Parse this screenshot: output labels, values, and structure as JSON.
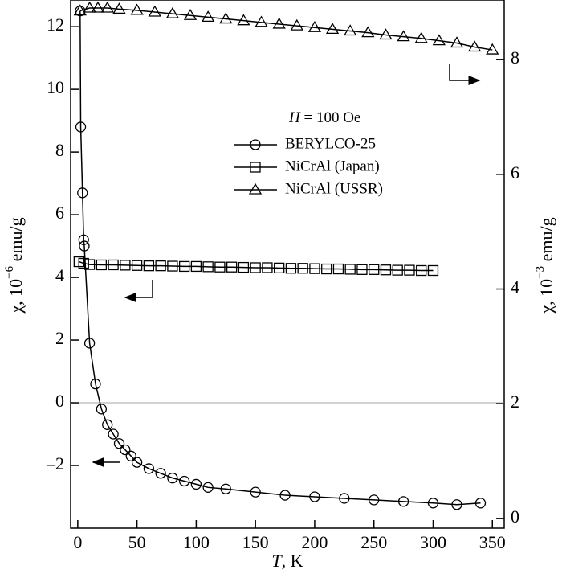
{
  "chart_data": {
    "type": "scatter",
    "xlabel_parts": [
      "T",
      ", K"
    ],
    "ylabel_parts": [
      "χ, 10",
      "−6",
      " emu/g"
    ],
    "y2label_parts": [
      "χ, 10",
      "−3",
      " emu/g"
    ],
    "annotation_parts": [
      "H",
      " = 100 Oe"
    ],
    "xlim": [
      -6,
      360
    ],
    "xticks": [
      0,
      50,
      100,
      150,
      200,
      250,
      300,
      350
    ],
    "ylim": [
      -4,
      12.85
    ],
    "yticks": [
      {
        "value": -2,
        "label": "–2"
      },
      0,
      2,
      4,
      6,
      8,
      10,
      12
    ],
    "y2lim": [
      -0.17,
      9.04
    ],
    "y2ticks": [
      0,
      2,
      4,
      6,
      8
    ],
    "reference_line": 0,
    "series": [
      {
        "name": "BERYLCO-25",
        "color": "#000",
        "marker": "circle",
        "axis": "y",
        "x": [
          2,
          2.5,
          4,
          5,
          5.5,
          10,
          15,
          20,
          25,
          30,
          35,
          40,
          45,
          50,
          60,
          70,
          80,
          90,
          100,
          110,
          125,
          150,
          175,
          200,
          225,
          250,
          275,
          300,
          320,
          340
        ],
        "values": [
          12.5,
          8.8,
          6.7,
          5.2,
          5.0,
          1.9,
          0.6,
          -0.2,
          -0.7,
          -1.0,
          -1.3,
          -1.5,
          -1.7,
          -1.9,
          -2.1,
          -2.25,
          -2.4,
          -2.5,
          -2.6,
          -2.7,
          -2.75,
          -2.85,
          -2.95,
          -3.0,
          -3.05,
          -3.1,
          -3.15,
          -3.2,
          -3.25,
          -3.2
        ]
      },
      {
        "name": "NiCrAl (Japan)",
        "color": "#000",
        "marker": "square",
        "axis": "y",
        "x": [
          1,
          5,
          10,
          20,
          30,
          40,
          50,
          60,
          70,
          80,
          90,
          100,
          110,
          120,
          130,
          140,
          150,
          160,
          170,
          180,
          190,
          200,
          210,
          220,
          230,
          240,
          250,
          260,
          270,
          280,
          290,
          300
        ],
        "values": [
          4.5,
          4.45,
          4.41,
          4.4,
          4.4,
          4.39,
          4.38,
          4.37,
          4.37,
          4.36,
          4.35,
          4.35,
          4.34,
          4.33,
          4.33,
          4.32,
          4.31,
          4.31,
          4.3,
          4.29,
          4.29,
          4.28,
          4.27,
          4.27,
          4.26,
          4.25,
          4.25,
          4.24,
          4.23,
          4.23,
          4.22,
          4.22
        ]
      },
      {
        "name": "NiCrAl (USSR)",
        "color": "#000",
        "marker": "triangle",
        "axis": "y2",
        "x": [
          2,
          10,
          17,
          25,
          35,
          50,
          65,
          80,
          95,
          110,
          125,
          140,
          155,
          170,
          185,
          200,
          215,
          230,
          245,
          260,
          275,
          290,
          305,
          320,
          335,
          350
        ],
        "values": [
          8.85,
          8.9,
          8.9,
          8.9,
          8.88,
          8.86,
          8.83,
          8.8,
          8.77,
          8.74,
          8.71,
          8.68,
          8.65,
          8.62,
          8.59,
          8.56,
          8.53,
          8.5,
          8.47,
          8.43,
          8.4,
          8.37,
          8.33,
          8.29,
          8.22,
          8.17
        ]
      }
    ]
  }
}
